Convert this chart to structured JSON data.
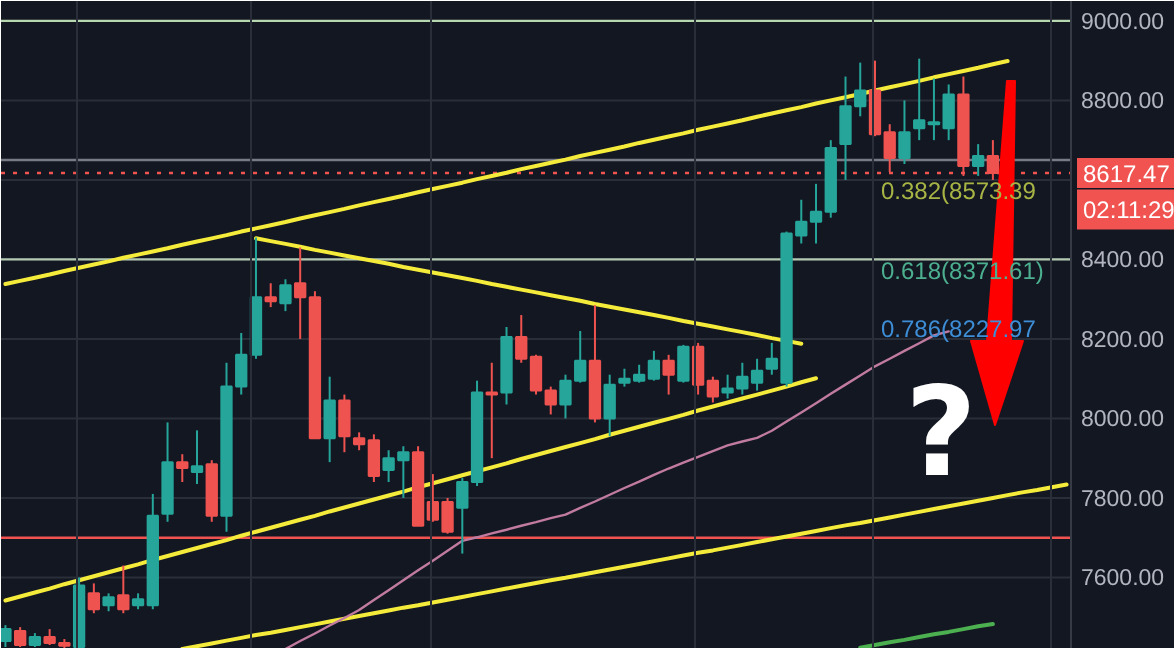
{
  "chart_data": {
    "type": "candlestick",
    "categories": [
      null,
      null,
      null,
      null,
      null,
      null,
      null,
      null,
      null,
      null,
      null,
      null,
      null,
      null,
      null,
      null,
      null,
      null,
      null,
      null,
      null,
      null,
      null,
      null,
      null,
      null,
      null,
      null,
      null,
      null,
      null,
      null,
      null,
      null,
      null,
      null,
      null,
      null,
      null,
      null,
      null,
      null,
      null,
      null,
      null,
      null,
      null,
      null,
      null,
      null,
      null,
      null,
      null,
      null,
      null,
      null,
      null,
      null,
      null,
      null,
      null,
      null,
      null,
      null,
      null,
      null,
      null,
      null,
      null,
      null,
      null,
      null,
      null
    ],
    "ohlc": [
      [
        7440,
        7480,
        7425,
        7470
      ],
      [
        7465,
        7475,
        7425,
        7430
      ],
      [
        7430,
        7460,
        7425,
        7450
      ],
      [
        7450,
        7470,
        7430,
        7435
      ],
      [
        7435,
        7445,
        7422,
        7428
      ],
      [
        7425,
        7600,
        7422,
        7580
      ],
      [
        7560,
        7585,
        7510,
        7520
      ],
      [
        7530,
        7560,
        7515,
        7550
      ],
      [
        7555,
        7630,
        7510,
        7520
      ],
      [
        7530,
        7560,
        7520,
        7545
      ],
      [
        7530,
        7810,
        7520,
        7755
      ],
      [
        7760,
        7990,
        7740,
        7890
      ],
      [
        7890,
        7910,
        7840,
        7875
      ],
      [
        7865,
        7970,
        7835,
        7880
      ],
      [
        7885,
        7895,
        7740,
        7755
      ],
      [
        7755,
        8140,
        7715,
        8080
      ],
      [
        8080,
        8215,
        8060,
        8160
      ],
      [
        8160,
        8455,
        8150,
        8305
      ],
      [
        8305,
        8340,
        8280,
        8295
      ],
      [
        8290,
        8350,
        8270,
        8335
      ],
      [
        8340,
        8430,
        8200,
        8305
      ],
      [
        8305,
        8320,
        7950,
        7950
      ],
      [
        7950,
        8105,
        7890,
        8045
      ],
      [
        8045,
        8060,
        7915,
        7955
      ],
      [
        7950,
        7965,
        7920,
        7935
      ],
      [
        7945,
        7960,
        7840,
        7855
      ],
      [
        7870,
        7920,
        7840,
        7900
      ],
      [
        7895,
        7930,
        7800,
        7915
      ],
      [
        7915,
        7930,
        7730,
        7730
      ],
      [
        7790,
        7860,
        7740,
        7745
      ],
      [
        7790,
        7800,
        7710,
        7715
      ],
      [
        7775,
        7850,
        7660,
        7840
      ],
      [
        7840,
        8095,
        7830,
        8065
      ],
      [
        8065,
        8140,
        7900,
        8060
      ],
      [
        8065,
        8230,
        8035,
        8205
      ],
      [
        8205,
        8260,
        8140,
        8150
      ],
      [
        8155,
        8160,
        8060,
        8070
      ],
      [
        8070,
        8080,
        8010,
        8035
      ],
      [
        8035,
        8110,
        8000,
        8095
      ],
      [
        8095,
        8220,
        8090,
        8145
      ],
      [
        8145,
        8285,
        7990,
        8000
      ],
      [
        8000,
        8110,
        7955,
        8085
      ],
      [
        8090,
        8125,
        8080,
        8100
      ],
      [
        8095,
        8135,
        8090,
        8110
      ],
      [
        8100,
        8170,
        8095,
        8145
      ],
      [
        8145,
        8160,
        8060,
        8110
      ],
      [
        8095,
        8185,
        8090,
        8180
      ],
      [
        8180,
        8190,
        8060,
        8085
      ],
      [
        8095,
        8105,
        8040,
        8055
      ],
      [
        8065,
        8110,
        8050,
        8075
      ],
      [
        8075,
        8140,
        8060,
        8105
      ],
      [
        8090,
        8150,
        8070,
        8120
      ],
      [
        8125,
        8190,
        8110,
        8150
      ],
      [
        8090,
        8470,
        8080,
        8465
      ],
      [
        8460,
        8550,
        8440,
        8495
      ],
      [
        8495,
        8590,
        8440,
        8520
      ],
      [
        8520,
        8700,
        8505,
        8680
      ],
      [
        8690,
        8860,
        8600,
        8785
      ],
      [
        8785,
        8895,
        8760,
        8825
      ],
      [
        8825,
        8900,
        8710,
        8715
      ],
      [
        8720,
        8740,
        8620,
        8655
      ],
      [
        8655,
        8800,
        8640,
        8720
      ],
      [
        8730,
        8905,
        8700,
        8750
      ],
      [
        8740,
        8855,
        8700,
        8745
      ],
      [
        8730,
        8840,
        8700,
        8815
      ],
      [
        8815,
        8860,
        8610,
        8635
      ],
      [
        8635,
        8690,
        8610,
        8660
      ],
      [
        8660,
        8700,
        8600,
        8617.47
      ],
      null,
      null,
      null,
      null,
      null
    ],
    "series": [
      {
        "type": "line",
        "color": "#f5eb3b",
        "values": [
          8338,
          8346,
          8354,
          8362,
          8371,
          8379,
          8387,
          8395,
          8404,
          8412,
          8420,
          8428,
          8437,
          8445,
          8453,
          8461,
          8470,
          8478,
          8486,
          8494,
          8503,
          8511,
          8519,
          8527,
          8536,
          8544,
          8552,
          8560,
          8569,
          8577,
          8585,
          8593,
          8602,
          8610,
          8618,
          8627,
          8635,
          8643,
          8651,
          8660,
          8668,
          8676,
          8684,
          8693,
          8701,
          8709,
          8717,
          8726,
          8734,
          8742,
          8750,
          8759,
          8767,
          8775,
          8783,
          8792,
          8800,
          8808,
          8816,
          8825,
          8833,
          8841,
          8849,
          8858,
          8866,
          8874,
          8882,
          8891,
          8899,
          null,
          null,
          null,
          null
        ]
      },
      {
        "type": "line",
        "color": "#f5eb3b",
        "values": [
          null,
          null,
          null,
          null,
          null,
          null,
          null,
          null,
          null,
          null,
          null,
          null,
          null,
          null,
          null,
          null,
          null,
          8453,
          8446,
          8439,
          8432,
          8424,
          8417,
          8410,
          8403,
          8396,
          8389,
          8381,
          8374,
          8367,
          8360,
          8353,
          8346,
          8338,
          8331,
          8324,
          8317,
          8310,
          8303,
          8296,
          8288,
          8281,
          8274,
          8267,
          8260,
          8253,
          8245,
          8238,
          8231,
          8224,
          8217,
          8210,
          8202,
          8195,
          8188,
          null,
          null,
          null,
          null,
          null,
          null,
          null,
          null,
          null,
          null,
          null,
          null,
          null,
          null,
          null,
          null,
          null,
          null
        ]
      },
      {
        "type": "line",
        "color": "#f5eb3b",
        "values": [
          7542,
          7552,
          7562,
          7572,
          7583,
          7593,
          7603,
          7613,
          7623,
          7633,
          7644,
          7654,
          7664,
          7674,
          7684,
          7694,
          7705,
          7715,
          7725,
          7735,
          7745,
          7755,
          7766,
          7776,
          7786,
          7796,
          7806,
          7816,
          7827,
          7837,
          7847,
          7857,
          7867,
          7877,
          7887,
          7898,
          7908,
          7918,
          7928,
          7938,
          7948,
          7959,
          7969,
          7979,
          7989,
          7999,
          8009,
          8020,
          8030,
          8040,
          8050,
          8060,
          8070,
          8080,
          8091,
          8101,
          null,
          null,
          null,
          null,
          null,
          null,
          null,
          null,
          null,
          null,
          null,
          null,
          null,
          null,
          null,
          null,
          null
        ]
      },
      {
        "type": "line",
        "color": "#f5eb3b",
        "values": [
          null,
          null,
          null,
          null,
          null,
          null,
          null,
          null,
          null,
          null,
          null,
          null,
          7420,
          7427,
          7434,
          7441,
          7448,
          7455,
          7461,
          7468,
          7475,
          7482,
          7489,
          7496,
          7503,
          7510,
          7517,
          7524,
          7530,
          7537,
          7544,
          7551,
          7558,
          7565,
          7572,
          7579,
          7586,
          7593,
          7599,
          7606,
          7613,
          7620,
          7627,
          7634,
          7641,
          7648,
          7655,
          7662,
          7668,
          7675,
          7682,
          7689,
          7696,
          7703,
          7710,
          7717,
          7724,
          7731,
          7737,
          7744,
          7751,
          7758,
          7765,
          7772,
          7779,
          7786,
          7793,
          7800,
          7807,
          7814,
          7820,
          7827,
          7834
        ]
      },
      {
        "type": "line",
        "color": "#c27ba0",
        "values": [
          null,
          null,
          null,
          null,
          null,
          null,
          null,
          null,
          null,
          null,
          null,
          null,
          null,
          null,
          null,
          null,
          null,
          null,
          null,
          7420,
          7440,
          7459,
          7479,
          7498,
          7518,
          7543,
          7568,
          7593,
          7618,
          7642,
          7667,
          7692,
          7701,
          7711,
          7720,
          7730,
          7739,
          7749,
          7758,
          7775,
          7791,
          7808,
          7825,
          7841,
          7858,
          7874,
          7889,
          7903,
          7918,
          7932,
          7942,
          7951,
          7969,
          7992,
          8015,
          8038,
          8062,
          8085,
          8108,
          8131,
          8150,
          8170,
          8189,
          8209,
          8219,
          null,
          null,
          null,
          null,
          null,
          null,
          null,
          null
        ]
      },
      {
        "type": "line",
        "color": "#4caf50",
        "values": [
          null,
          null,
          null,
          null,
          null,
          null,
          null,
          null,
          null,
          null,
          null,
          null,
          null,
          null,
          null,
          null,
          null,
          null,
          null,
          null,
          null,
          null,
          null,
          null,
          null,
          null,
          null,
          null,
          null,
          null,
          null,
          null,
          null,
          null,
          null,
          null,
          null,
          null,
          null,
          null,
          null,
          null,
          null,
          null,
          null,
          null,
          null,
          null,
          null,
          null,
          null,
          null,
          null,
          null,
          null,
          null,
          null,
          null,
          7423,
          7430,
          7437,
          7443,
          7450,
          7457,
          7463,
          7470,
          7477,
          7483,
          null,
          null,
          null,
          null,
          null
        ]
      }
    ],
    "ref_lines": [
      {
        "axis": "y",
        "value": 9000,
        "color": "#b7d7b0"
      },
      {
        "axis": "y",
        "value": 8650,
        "color": "#787b86"
      },
      {
        "axis": "y",
        "value": 8400,
        "color": "#b2c8b0"
      },
      {
        "axis": "y",
        "value": 7700,
        "color": "#f05350"
      },
      {
        "axis": "y",
        "value": 8617.47,
        "label": "8617.47",
        "color": "#f05350",
        "line_style": "dotted"
      }
    ],
    "annotations": [
      "0.382(8573.39",
      "0.618(8371.61)",
      "0.786(8227.97",
      "?",
      "02:11:29"
    ],
    "ylim": [
      7420,
      9050
    ],
    "yticks": [
      {
        "value": 7600,
        "label": "7600.00"
      },
      {
        "value": 7800,
        "label": "7800.00"
      },
      {
        "value": 8000,
        "label": "8000.00"
      },
      {
        "value": 8200,
        "label": "8200.00"
      },
      {
        "value": 8400,
        "label": "8400.00"
      },
      {
        "value": 8600,
        "label": null
      },
      {
        "value": 8800,
        "label": "8800.00"
      },
      {
        "value": 9000,
        "label": "9000.00"
      }
    ],
    "tick_labels": "y",
    "grid": true
  }
}
